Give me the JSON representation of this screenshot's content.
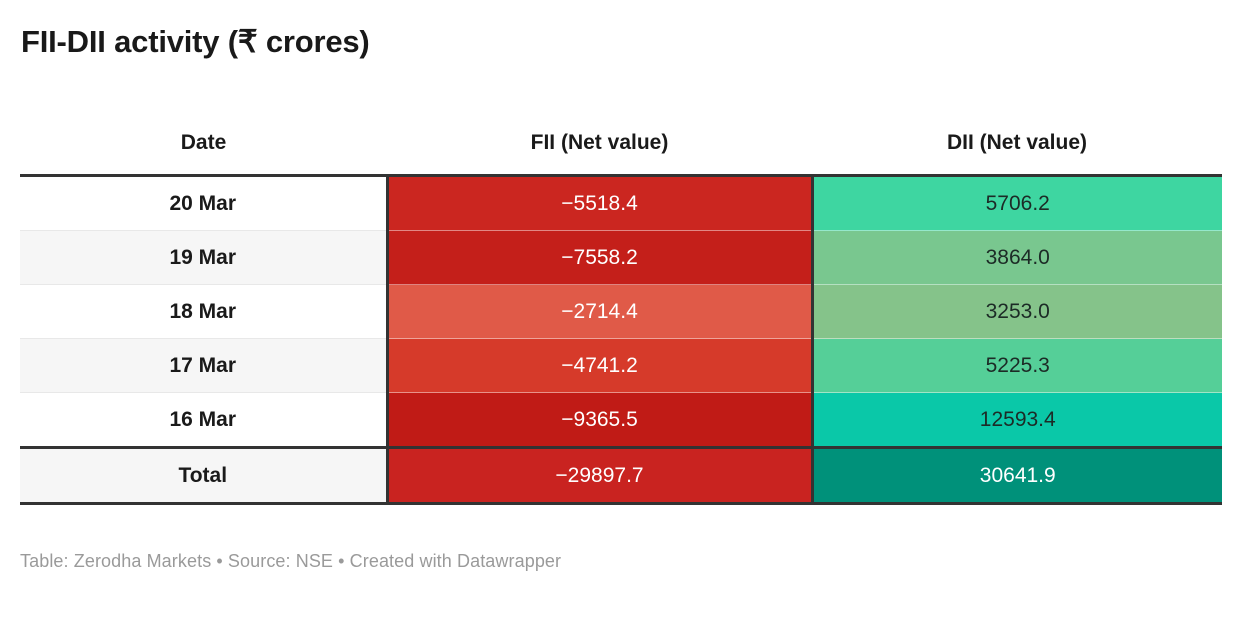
{
  "title": "FII-DII activity (₹ crores)",
  "table": {
    "columns": [
      "Date",
      "FII (Net value)",
      "DII (Net value)"
    ],
    "rows": [
      {
        "date": "20 Mar",
        "fii": "−5518.4",
        "dii": "5706.2",
        "date_bg": "#ffffff",
        "fii_color": "#cb2620",
        "fii_text": "#ffffff",
        "dii_color": "#3ed6a1",
        "dii_text": "#1c2b26"
      },
      {
        "date": "19 Mar",
        "fii": "−7558.2",
        "dii": "3864.0",
        "date_bg": "#f6f6f6",
        "fii_color": "#c41f1a",
        "fii_text": "#ffffff",
        "dii_color": "#79c78f",
        "dii_text": "#1c2b26"
      },
      {
        "date": "18 Mar",
        "fii": "−2714.4",
        "dii": "3253.0",
        "date_bg": "#ffffff",
        "fii_color": "#e05a48",
        "fii_text": "#ffffff",
        "dii_color": "#85c38a",
        "dii_text": "#1c2b26"
      },
      {
        "date": "17 Mar",
        "fii": "−4741.2",
        "dii": "5225.3",
        "date_bg": "#f6f6f6",
        "fii_color": "#d63a2a",
        "fii_text": "#ffffff",
        "dii_color": "#55cf98",
        "dii_text": "#1c2b26"
      },
      {
        "date": "16 Mar",
        "fii": "−9365.5",
        "dii": "12593.4",
        "date_bg": "#ffffff",
        "fii_color": "#c01b16",
        "fii_text": "#ffffff",
        "dii_color": "#0ac8a8",
        "dii_text": "#1c2b26"
      },
      {
        "date": "Total",
        "fii": "−29897.7",
        "dii": "30641.9",
        "date_bg": "#f6f6f6",
        "fii_color": "#c92320",
        "fii_text": "#ffffff",
        "dii_color": "#00917a",
        "dii_text": "#ffffff"
      }
    ]
  },
  "footer": "Table: Zerodha Markets • Source: NSE • Created with Datawrapper",
  "colors": {
    "border_dark": "#333333",
    "zebra_light": "#f6f6f6",
    "footer_text": "#9a9a9a",
    "title_text": "#191919"
  },
  "chart_data": {
    "type": "table",
    "title": "FII-DII activity (₹ crores)",
    "columns": [
      "Date",
      "FII (Net value)",
      "DII (Net value)"
    ],
    "rows": [
      [
        "20 Mar",
        -5518.4,
        5706.2
      ],
      [
        "19 Mar",
        -7558.2,
        3864.0
      ],
      [
        "18 Mar",
        -2714.4,
        3253.0
      ],
      [
        "17 Mar",
        -4741.2,
        5225.3
      ],
      [
        "16 Mar",
        -9365.5,
        12593.4
      ],
      [
        "Total",
        -29897.7,
        30641.9
      ]
    ],
    "styling": "heatmap table: FII column shaded red (more negative = darker red, white text), DII column shaded green/teal (larger = more saturated teal; total row dark teal with white text)",
    "source": "NSE",
    "attribution": "Zerodha Markets, Created with Datawrapper"
  }
}
